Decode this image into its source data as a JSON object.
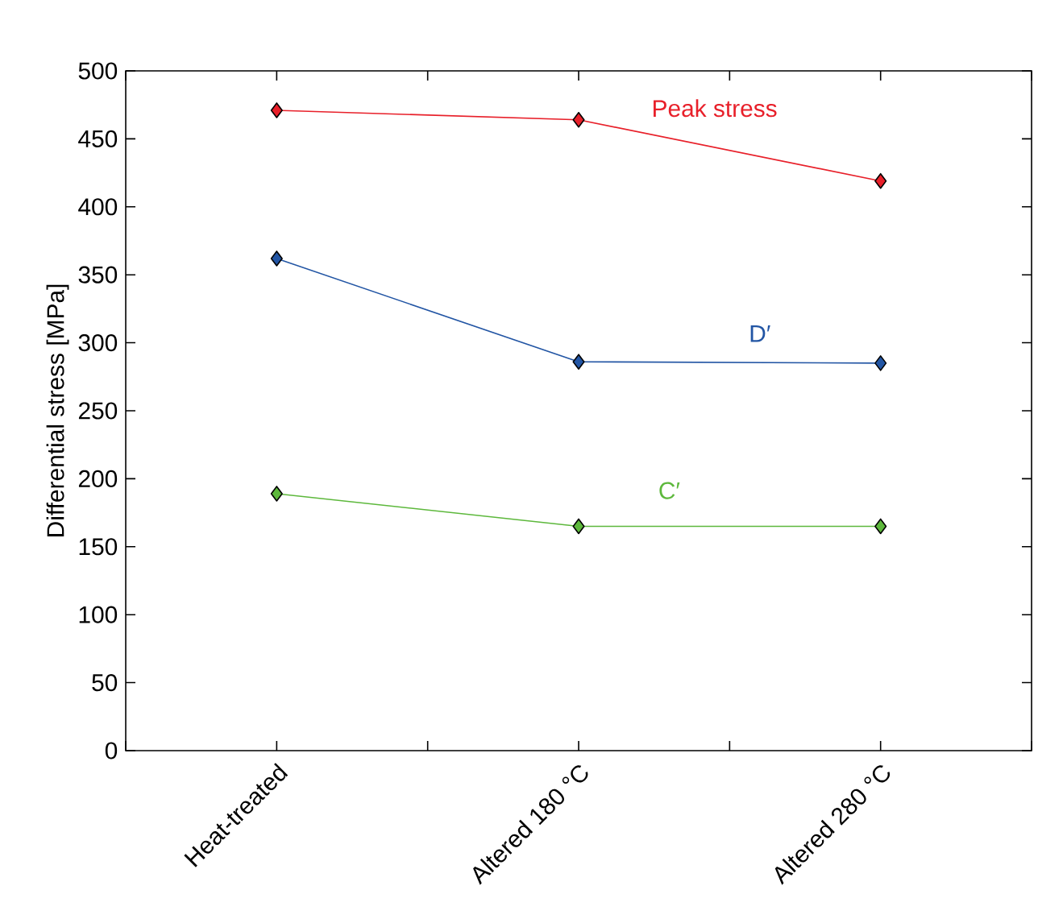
{
  "chart_data": {
    "type": "line",
    "ylabel": "Differential stress [MPa]",
    "categories": [
      "Heat-treated",
      "Altered 180 °C",
      "Altered 280 °C"
    ],
    "series": [
      {
        "name": "Peak stress",
        "color": "#e8202a",
        "values": [
          471,
          464,
          419
        ]
      },
      {
        "name": "D′",
        "color": "#2255a4",
        "values": [
          362,
          286,
          285
        ]
      },
      {
        "name": "C′",
        "color": "#5db83c",
        "values": [
          189,
          165,
          165
        ]
      }
    ],
    "ylim": [
      0,
      500
    ],
    "yticks": [
      0,
      50,
      100,
      150,
      200,
      250,
      300,
      350,
      400,
      450,
      500
    ],
    "marker": "diamond",
    "line_style": "solid",
    "grid": false
  }
}
